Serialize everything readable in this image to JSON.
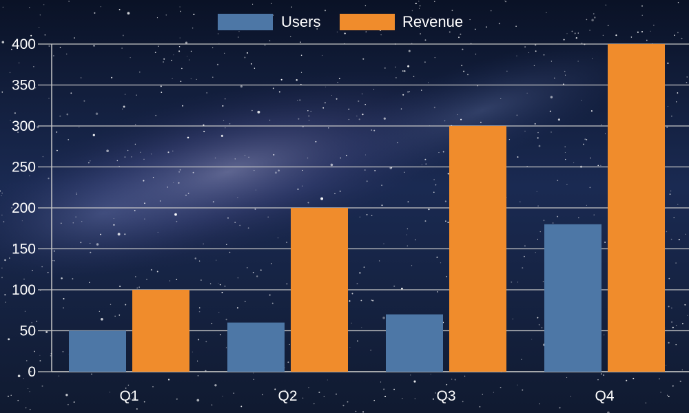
{
  "colors": {
    "users": "#4d77a6",
    "revenue": "#f08c2c",
    "grid": "#c8c8c8",
    "text": "#ffffff",
    "sky_top": "#0a1226",
    "sky_mid": "#243a6a",
    "milky_way": "#8a8ab8"
  },
  "chart_data": {
    "type": "bar",
    "categories": [
      "Q1",
      "Q2",
      "Q3",
      "Q4"
    ],
    "series": [
      {
        "name": "Users",
        "values": [
          50,
          60,
          70,
          180
        ],
        "color": "#4d77a6"
      },
      {
        "name": "Revenue",
        "values": [
          100,
          200,
          300,
          400
        ],
        "color": "#f08c2c"
      }
    ],
    "yticks": [
      0,
      50,
      100,
      150,
      200,
      250,
      300,
      350,
      400
    ],
    "ylim": [
      0,
      400
    ],
    "grid": true,
    "legend": "top-center",
    "background": "starry night sky"
  }
}
